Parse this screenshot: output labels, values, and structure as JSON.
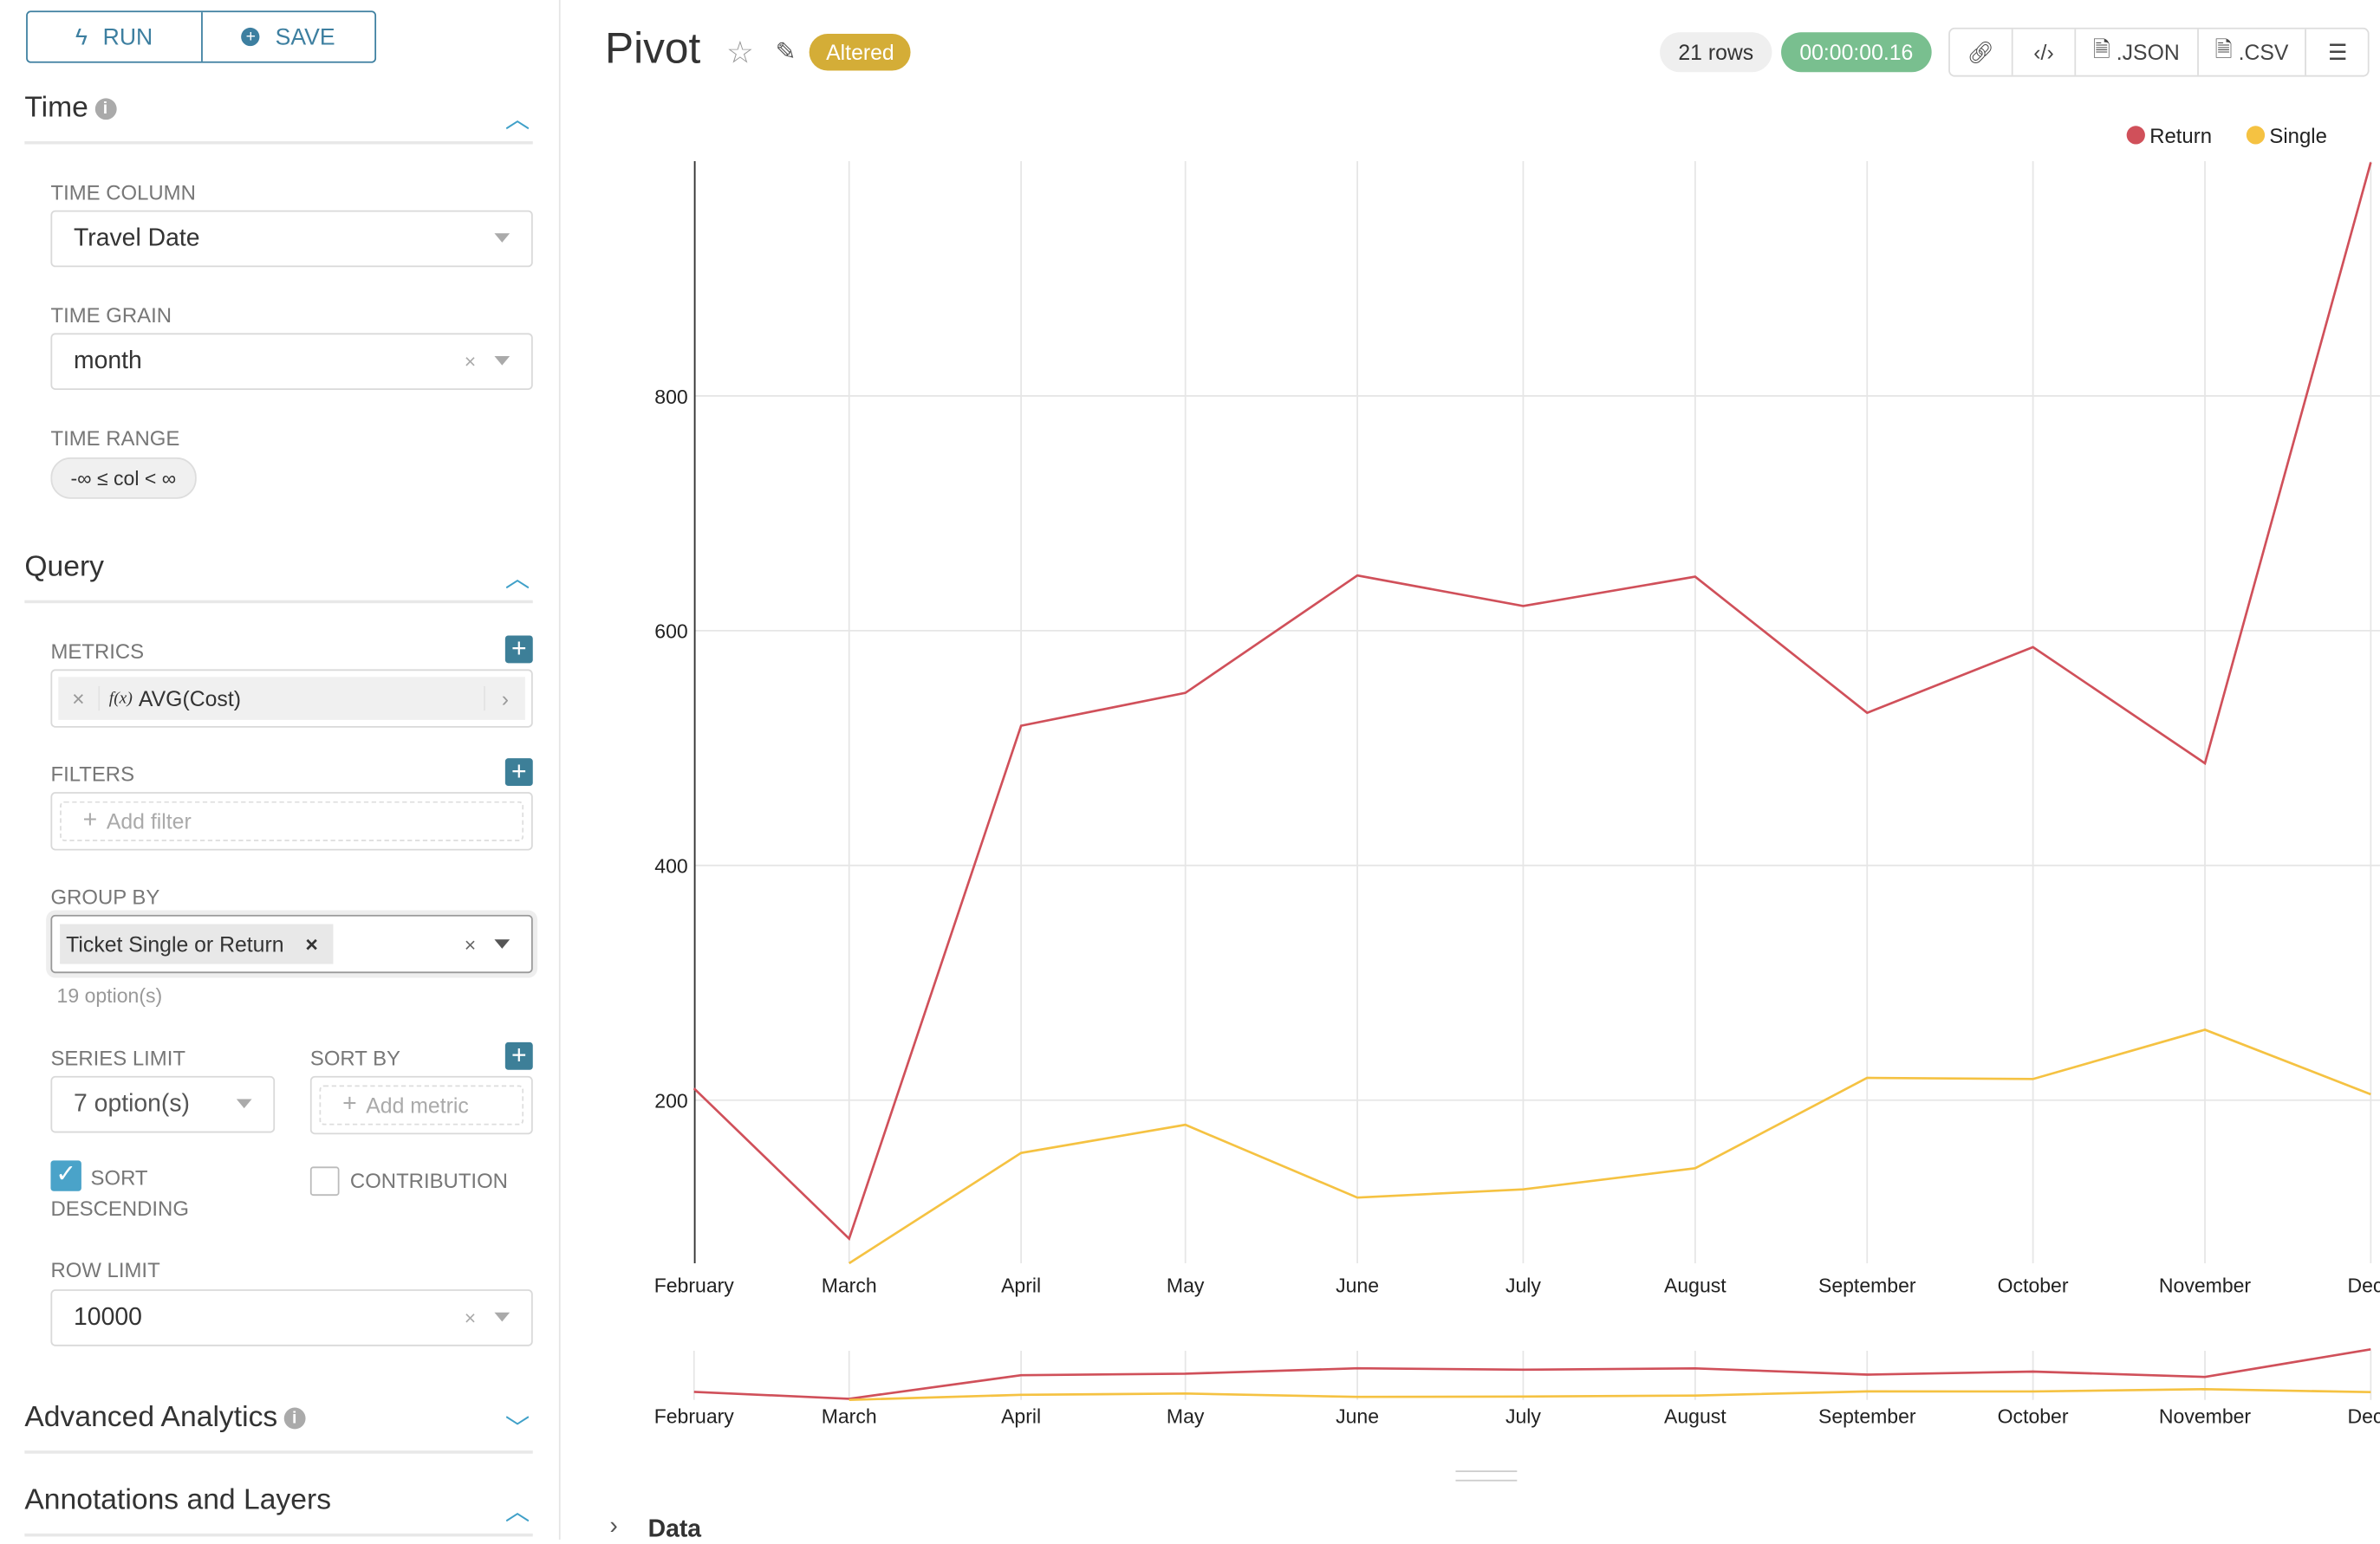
{
  "sidebar": {
    "run_label": "RUN",
    "save_label": "SAVE",
    "time_section": {
      "title": "Time",
      "time_column": {
        "label": "TIME COLUMN",
        "value": "Travel Date"
      },
      "time_grain": {
        "label": "TIME GRAIN",
        "value": "month"
      },
      "time_range": {
        "label": "TIME RANGE",
        "value": "-∞ ≤ col < ∞"
      }
    },
    "query_section": {
      "title": "Query",
      "metrics": {
        "label": "METRICS",
        "value": "AVG(Cost)",
        "fx": "f(x)"
      },
      "filters": {
        "label": "FILTERS",
        "placeholder": "Add filter"
      },
      "group_by": {
        "label": "GROUP BY",
        "value": "Ticket Single or Return",
        "hint": "19 option(s)"
      },
      "series_limit": {
        "label": "SERIES LIMIT",
        "value": "7 option(s)"
      },
      "sort_by": {
        "label": "SORT BY",
        "placeholder": "Add metric"
      },
      "sort_descending": {
        "label": "SORT DESCENDING",
        "checked": true
      },
      "contribution": {
        "label": "CONTRIBUTION",
        "checked": false
      },
      "row_limit": {
        "label": "ROW LIMIT",
        "value": "10000"
      }
    },
    "advanced_title": "Advanced Analytics",
    "annotations_title": "Annotations and Layers"
  },
  "header": {
    "title": "Pivot",
    "altered_badge": "Altered",
    "rows": "21 rows",
    "timer": "00:00:00.16",
    "json_label": ".JSON",
    "csv_label": ".CSV"
  },
  "colors": {
    "accent": "#3d7fa0",
    "altered": "#d4ad37",
    "timer": "#79bf8f",
    "return": "#d0505a",
    "single": "#f5c242"
  },
  "data_section": "Data",
  "chart_data": {
    "type": "line",
    "categories": [
      "February",
      "March",
      "April",
      "May",
      "June",
      "July",
      "August",
      "September",
      "October",
      "November",
      "Dece"
    ],
    "yticks": [
      200,
      400,
      600,
      800
    ],
    "ylim": [
      61,
      1000
    ],
    "legend_position": "top-right",
    "grid": true,
    "series": [
      {
        "name": "Return",
        "values": [
          210,
          82,
          519,
          547,
          647,
          621,
          646,
          530,
          586,
          487,
          999
        ]
      },
      {
        "name": "Single",
        "values": [
          null,
          61,
          155,
          179,
          117,
          124,
          142,
          219,
          218,
          260,
          205
        ]
      }
    ]
  }
}
